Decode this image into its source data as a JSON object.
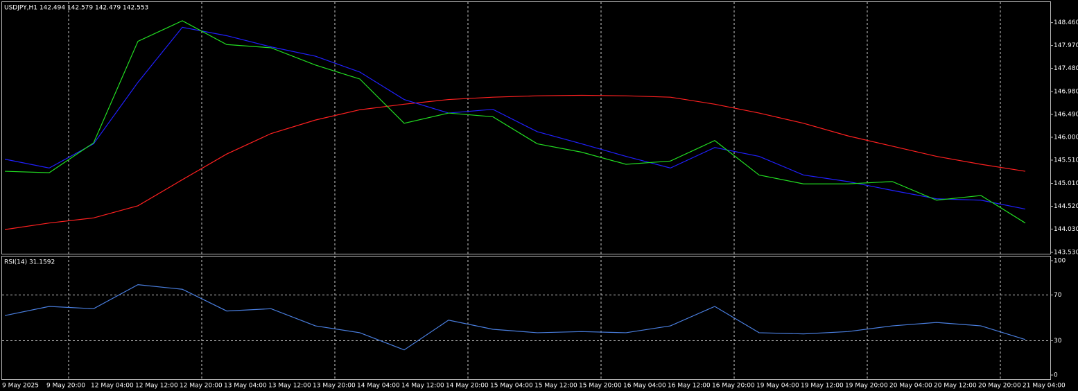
{
  "chart_data": [
    {
      "type": "line",
      "title": "USDJPY,H1  142.494 142.579 142.479 142.553",
      "categories": [
        "9 May 2025",
        "9 May 20:00",
        "12 May 04:00",
        "12 May 12:00",
        "12 May 20:00",
        "13 May 04:00",
        "13 May 12:00",
        "13 May 20:00",
        "14 May 04:00",
        "14 May 12:00",
        "14 May 20:00",
        "15 May 04:00",
        "15 May 12:00",
        "15 May 20:00",
        "16 May 04:00",
        "16 May 12:00",
        "16 May 20:00",
        "19 May 04:00",
        "19 May 12:00",
        "19 May 20:00",
        "20 May 04:00",
        "20 May 12:00",
        "20 May 20:00",
        "21 May 04:00"
      ],
      "series": [
        {
          "color": "#ff2020",
          "values": [
            144.02,
            144.16,
            144.27,
            144.53,
            145.09,
            145.64,
            146.08,
            146.37,
            146.59,
            146.71,
            146.81,
            146.86,
            146.89,
            146.9,
            146.89,
            146.86,
            146.71,
            146.52,
            146.3,
            146.03,
            145.81,
            145.59,
            145.42,
            145.27
          ]
        },
        {
          "color": "#2020ff",
          "values": [
            145.53,
            145.34,
            145.86,
            147.18,
            148.36,
            148.18,
            147.94,
            147.74,
            147.4,
            146.81,
            146.52,
            146.6,
            146.12,
            145.86,
            145.59,
            145.34,
            145.78,
            145.59,
            145.19,
            145.05,
            144.86,
            144.68,
            144.65,
            144.46
          ]
        },
        {
          "color": "#22dd22",
          "values": [
            145.27,
            145.24,
            145.88,
            148.06,
            148.5,
            147.99,
            147.92,
            147.55,
            147.25,
            146.3,
            146.52,
            146.44,
            145.86,
            145.68,
            145.42,
            145.49,
            145.93,
            145.19,
            145.0,
            145.0,
            145.05,
            144.65,
            144.75,
            144.16
          ]
        }
      ],
      "ylim": [
        143.486,
        148.916
      ],
      "yticks": [
        {
          "value": 148.46,
          "label": "148.460"
        },
        {
          "value": 147.97,
          "label": "147.970"
        },
        {
          "value": 147.48,
          "label": "147.480"
        },
        {
          "value": 146.98,
          "label": "146.980"
        },
        {
          "value": 146.49,
          "label": "146.490"
        },
        {
          "value": 146.0,
          "label": "146.000"
        },
        {
          "value": 145.51,
          "label": "145.510"
        },
        {
          "value": 145.01,
          "label": "145.010"
        },
        {
          "value": 144.52,
          "label": "144.520"
        },
        {
          "value": 144.03,
          "label": "144.030"
        },
        {
          "value": 143.53,
          "label": "143.530"
        }
      ]
    },
    {
      "type": "line",
      "title": "RSI(14) 31.1592",
      "color": "#4a7fe0",
      "values": [
        52,
        60,
        58,
        79,
        75,
        56,
        58,
        43,
        37,
        22,
        48,
        40,
        37,
        38,
        37,
        43,
        60,
        37,
        36,
        38,
        43,
        46,
        43,
        31
      ],
      "ylim": [
        0,
        100
      ],
      "yticks": [
        100,
        70,
        30,
        0
      ]
    }
  ]
}
